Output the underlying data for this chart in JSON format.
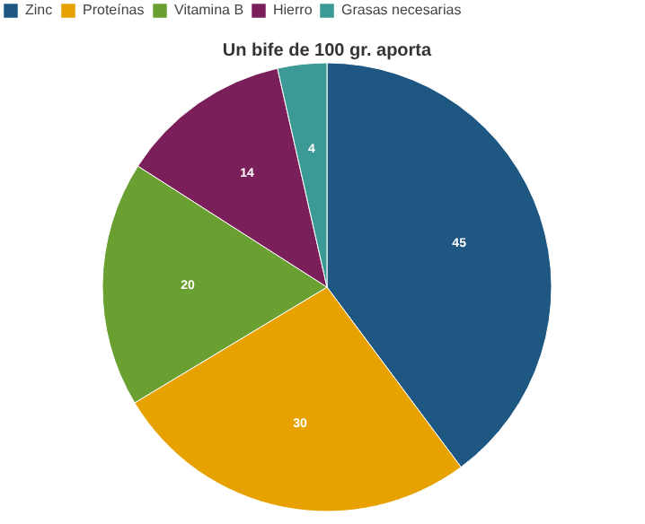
{
  "chart_data": {
    "type": "pie",
    "title": "Un bife de 100 gr. aporta",
    "categories": [
      "Zinc",
      "Proteínas",
      "Vitamina B",
      "Hierro",
      "Grasas necesarias"
    ],
    "values": [
      45,
      30,
      20,
      14,
      4
    ],
    "colors": [
      "#1f5783",
      "#e8a200",
      "#6a9f32",
      "#7b1f5b",
      "#3c9a96"
    ],
    "data_labels": true,
    "legend": "top left"
  }
}
